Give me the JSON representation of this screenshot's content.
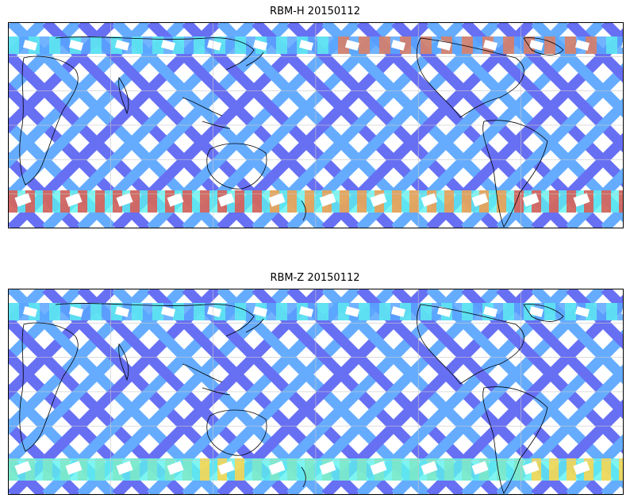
{
  "panels": [
    {
      "id": "top",
      "title": "RBM-H 20150112",
      "colors": {
        "south_band": "#e0554f",
        "south_band_alt": "#f59a4a",
        "north_band": "#f2784a",
        "mid_band": "#6a88f5"
      }
    },
    {
      "id": "bottom",
      "title": "RBM-Z 20150112",
      "colors": {
        "south_band": "#ffd54a",
        "south_band_alt": "#7ee8c8",
        "north_band": "#7ce0ee",
        "mid_band": "#6a88f5"
      }
    }
  ],
  "palette": {
    "low": "#5b63f2",
    "mid_low": "#59a6ff",
    "mid": "#5ef2ee",
    "mid_high": "#b8f07a",
    "high": "#ffd84a",
    "higher": "#f6a34a",
    "highest": "#e0554f"
  },
  "map_style": {
    "coastline_color": "#000000",
    "grid_color": "#c8c8c8",
    "frame_color": "#000000"
  }
}
